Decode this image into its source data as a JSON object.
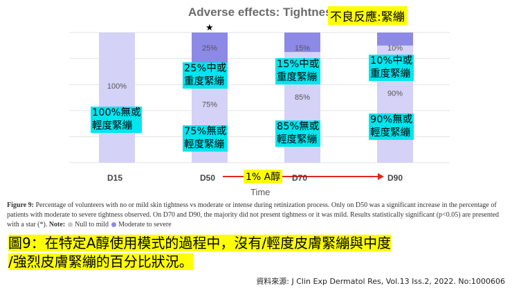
{
  "chart_data": {
    "type": "bar",
    "stacked": true,
    "title": "Adverse effects: Tightness",
    "xlabel": "Time",
    "ylabel": "",
    "categories": [
      "D15",
      "D50",
      "D70",
      "D90"
    ],
    "ylim": [
      0,
      100
    ],
    "grid": true,
    "series": [
      {
        "name": "Null to mild",
        "values": [
          100,
          75,
          85,
          90
        ],
        "color": "#d4d2f6"
      },
      {
        "name": "Moderate to severe",
        "values": [
          0,
          25,
          15,
          10
        ],
        "color": "#8d89e6"
      }
    ],
    "data_labels": {
      "Null to mild": [
        "100%",
        "75%",
        "85%",
        "90%"
      ],
      "Moderate to severe": [
        "",
        "25%",
        "15%",
        "10%"
      ]
    },
    "significance": {
      "category": "D50",
      "marker": "★"
    }
  },
  "title_zh": "不良反應:緊繃",
  "annotations": {
    "d15_low": [
      "100%無或",
      "輕度緊繃"
    ],
    "d50_high": [
      "25%中或",
      "重度緊繃"
    ],
    "d50_low": [
      "75%無或",
      "輕度緊繃"
    ],
    "d70_high": [
      "15%中或",
      "重度緊繃"
    ],
    "d70_low": [
      "85%無或",
      "輕度緊繃"
    ],
    "d90_high": [
      "10%中或",
      "重度緊繃"
    ],
    "d90_low": [
      "90%無或",
      "輕度緊繃"
    ],
    "arrow_label": "1% A醇"
  },
  "caption": {
    "lead": "Figure 9:",
    "text": " Percentage of volunteers with no or mild skin tightness vs moderate or intense during retinization process. Only on D50 was a significant increase in the percentage of patients with moderate to severe tightness observed. On D70 and D90, the majority did not present tightness or it was mild. Results statistically significant (p<0.05) are presented with a star (*). ",
    "note_label": "Note:",
    "legend_null": "Null to mild",
    "legend_mod": "Moderate to severe"
  },
  "summary": [
    "圖9：在特定A醇使用模式的過程中，沒有/輕度皮膚緊繃與中度",
    "/強烈皮膚緊繃的百分比狀況。"
  ],
  "source": "資料來源: J Clin Exp Dermatol Res, Vol.13 Iss.2, 2022. No:1000606"
}
